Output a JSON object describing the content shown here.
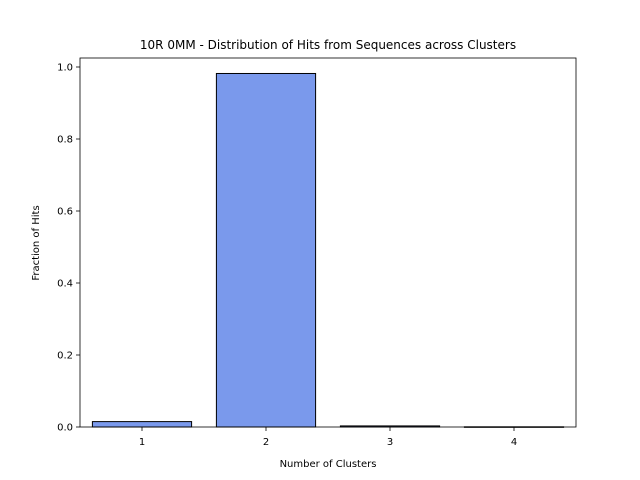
{
  "chart_data": {
    "type": "bar",
    "title": "10R 0MM - Distribution of Hits from Sequences across Clusters",
    "xlabel": "Number of Clusters",
    "ylabel": "Fraction of Hits",
    "categories": [
      "1",
      "2",
      "3",
      "4"
    ],
    "values": [
      0.015,
      0.982,
      0.003,
      0.0005
    ],
    "ylim": [
      0,
      1.025
    ],
    "yticks": [
      0.0,
      0.2,
      0.4,
      0.6,
      0.8,
      1.0
    ],
    "ytick_labels": [
      "0.0",
      "0.2",
      "0.4",
      "0.6",
      "0.8",
      "1.0"
    ],
    "grid": false,
    "bar_color": "#7a99ec",
    "edge_color": "#000000"
  }
}
